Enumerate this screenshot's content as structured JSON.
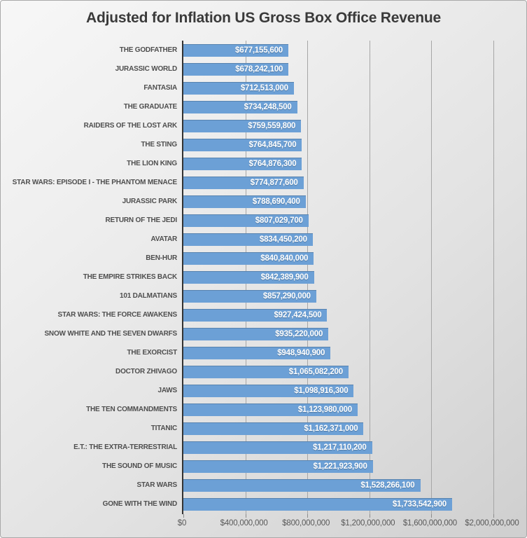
{
  "chart_data": {
    "type": "bar",
    "orientation": "horizontal",
    "title": "Adjusted for Inflation US Gross Box Office Revenue",
    "categories": [
      "THE GODFATHER",
      "JURASSIC WORLD",
      "FANTASIA",
      "THE GRADUATE",
      "RAIDERS OF THE LOST ARK",
      "THE STING",
      "THE LION KING",
      "STAR WARS: EPISODE I - THE PHANTOM MENACE",
      "JURASSIC PARK",
      "RETURN OF THE JEDI",
      "AVATAR",
      "BEN-HUR",
      "THE EMPIRE STRIKES BACK",
      "101 DALMATIANS",
      "STAR WARS: THE FORCE AWAKENS",
      "SNOW WHITE AND THE SEVEN DWARFS",
      "THE EXORCIST",
      "DOCTOR ZHIVAGO",
      "JAWS",
      "THE TEN COMMANDMENTS",
      "TITANIC",
      "E.T.: THE EXTRA-TERRESTRIAL",
      "THE SOUND OF MUSIC",
      "STAR WARS",
      "GONE WITH THE WIND"
    ],
    "values": [
      677155600,
      678242100,
      712513000,
      734248500,
      759559800,
      764845700,
      764876300,
      774877600,
      788690400,
      807029700,
      834450200,
      840840000,
      842389900,
      857290000,
      927424500,
      935220000,
      948940900,
      1065082200,
      1098916300,
      1123980000,
      1162371000,
      1217110200,
      1221923900,
      1528266100,
      1733542900
    ],
    "value_labels": [
      "$677,155,600",
      "$678,242,100",
      "$712,513,000",
      "$734,248,500",
      "$759,559,800",
      "$764,845,700",
      "$764,876,300",
      "$774,877,600",
      "$788,690,400",
      "$807,029,700",
      "$834,450,200",
      "$840,840,000",
      "$842,389,900",
      "$857,290,000",
      "$927,424,500",
      "$935,220,000",
      "$948,940,900",
      "$1,065,082,200",
      "$1,098,916,300",
      "$1,123,980,000",
      "$1,162,371,000",
      "$1,217,110,200",
      "$1,221,923,900",
      "$1,528,266,100",
      "$1,733,542,900"
    ],
    "x_ticks": [
      "$0",
      "$400,000,000",
      "$800,000,000",
      "$1,200,000,000",
      "$1,600,000,000",
      "$2,000,000,000"
    ],
    "xlim": [
      0,
      2000000000
    ],
    "bar_color": "#6ca0d6",
    "grid": true,
    "legend": false
  }
}
